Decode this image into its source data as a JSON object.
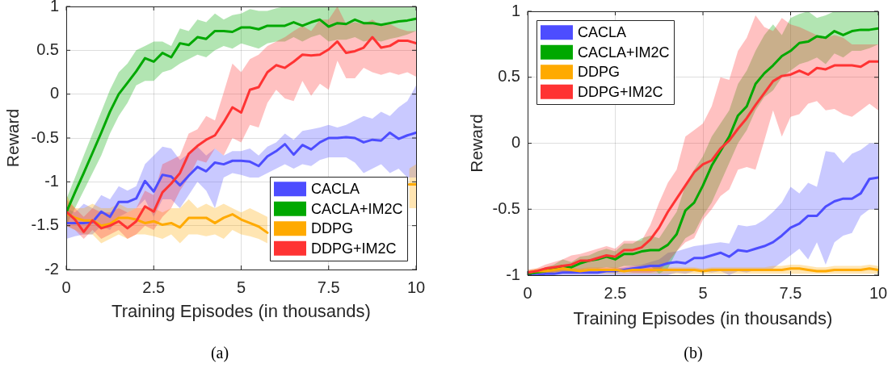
{
  "chart_data": [
    {
      "type": "line",
      "xlabel": "Training Episodes (in thousands)",
      "ylabel": "Reward",
      "annotations": [
        "(a)"
      ],
      "grid": true,
      "legend": "bottom right",
      "xlim": [
        0,
        10
      ],
      "ylim": [
        -2,
        1
      ],
      "xticks": [
        0,
        2.5,
        5,
        7.5,
        10
      ],
      "yticks": [
        -2,
        -1.5,
        -1,
        -0.5,
        0,
        0.5,
        1
      ],
      "x": [
        0,
        0.25,
        0.5,
        0.75,
        1,
        1.25,
        1.5,
        1.75,
        2,
        2.25,
        2.5,
        2.75,
        3,
        3.25,
        3.5,
        3.75,
        4,
        4.25,
        4.5,
        4.75,
        5,
        5.25,
        5.5,
        5.75,
        6,
        6.25,
        6.5,
        6.75,
        7,
        7.25,
        7.5,
        7.75,
        8,
        8.25,
        8.5,
        8.75,
        9,
        9.25,
        9.5,
        9.75,
        10
      ],
      "series": [
        {
          "name": "CACLA",
          "color": "#4d4dff",
          "values": [
            -1.47,
            -1.47,
            -1.47,
            -1.46,
            -1.34,
            -1.4,
            -1.23,
            -1.23,
            -1.19,
            -0.99,
            -1.11,
            -0.92,
            -0.94,
            -1.04,
            -0.93,
            -0.83,
            -0.88,
            -0.78,
            -0.8,
            -0.76,
            -0.76,
            -0.77,
            -0.82,
            -0.71,
            -0.65,
            -0.57,
            -0.69,
            -0.58,
            -0.63,
            -0.55,
            -0.5,
            -0.5,
            -0.49,
            -0.5,
            -0.55,
            -0.52,
            -0.53,
            -0.44,
            -0.51,
            -0.47,
            -0.44
          ],
          "upper": [
            -1.3,
            -1.35,
            -1.25,
            -1.3,
            -1.15,
            -1.2,
            -1.05,
            -1.1,
            -1.05,
            -0.8,
            -0.7,
            -0.6,
            -0.62,
            -0.75,
            -0.68,
            -0.6,
            -0.7,
            -0.62,
            -0.7,
            -0.65,
            -0.65,
            -0.62,
            -0.7,
            -0.6,
            -0.55,
            -0.45,
            -0.52,
            -0.42,
            -0.4,
            -0.38,
            -0.35,
            -0.38,
            -0.35,
            -0.3,
            -0.25,
            -0.28,
            -0.2,
            -0.25,
            -0.15,
            -0.08,
            0.1
          ],
          "lower": [
            -1.65,
            -1.62,
            -1.6,
            -1.6,
            -1.5,
            -1.55,
            -1.4,
            -1.35,
            -1.3,
            -1.2,
            -1.4,
            -1.2,
            -1.2,
            -1.3,
            -1.15,
            -1.0,
            -1.1,
            -1.3,
            -0.95,
            -0.9,
            -0.92,
            -0.95,
            -0.95,
            -0.9,
            -0.85,
            -0.8,
            -0.85,
            -0.8,
            -0.82,
            -0.75,
            -0.72,
            -0.72,
            -0.72,
            -0.78,
            -0.9,
            -0.85,
            -0.8,
            -0.9,
            -0.85,
            -0.95,
            -0.95
          ]
        },
        {
          "name": "CACLA+IM2C",
          "color": "#00a800",
          "values": [
            -1.35,
            -1.12,
            -0.9,
            -0.67,
            -0.44,
            -0.2,
            0.0,
            0.13,
            0.26,
            0.41,
            0.37,
            0.47,
            0.42,
            0.58,
            0.56,
            0.65,
            0.63,
            0.72,
            0.72,
            0.71,
            0.76,
            0.76,
            0.74,
            0.78,
            0.78,
            0.78,
            0.82,
            0.78,
            0.82,
            0.85,
            0.77,
            0.81,
            0.8,
            0.85,
            0.81,
            0.81,
            0.79,
            0.81,
            0.83,
            0.84,
            0.86
          ],
          "upper": [
            -1.2,
            -0.95,
            -0.7,
            -0.45,
            -0.2,
            0.05,
            0.25,
            0.35,
            0.5,
            0.55,
            0.6,
            0.6,
            0.55,
            0.75,
            0.72,
            0.85,
            0.82,
            0.92,
            0.85,
            0.9,
            0.92,
            0.97,
            0.95,
            0.95,
            0.98,
            1,
            1,
            1,
            1,
            1,
            1,
            1,
            1,
            1,
            1,
            1,
            1,
            1,
            1,
            1,
            1
          ],
          "lower": [
            -1.5,
            -1.3,
            -1.1,
            -0.9,
            -0.7,
            -0.45,
            -0.25,
            -0.1,
            0.1,
            0.15,
            0.15,
            0.25,
            0.28,
            0.35,
            0.4,
            0.45,
            0.42,
            0.5,
            0.55,
            0.52,
            0.58,
            0.55,
            0.52,
            0.58,
            0.6,
            0.6,
            0.65,
            0.6,
            0.65,
            0.68,
            0.6,
            0.62,
            0.62,
            0.65,
            0.6,
            0.62,
            0.6,
            0.63,
            0.65,
            0.68,
            0.72
          ]
        },
        {
          "name": "DDPG",
          "color": "#ffaa00",
          "x": [
            0,
            0.25,
            0.5,
            0.75,
            1,
            1.25,
            1.5,
            1.75,
            2,
            2.25,
            2.5,
            2.75,
            3,
            3.25,
            3.5,
            3.75,
            4,
            4.25,
            4.5,
            4.75,
            5,
            5.25,
            5.5,
            5.75,
            6,
            9.8,
            10
          ],
          "values": [
            -1.36,
            -1.41,
            -1.44,
            -1.44,
            -1.5,
            -1.48,
            -1.41,
            -1.41,
            -1.43,
            -1.47,
            -1.45,
            -1.49,
            -1.47,
            -1.52,
            -1.41,
            -1.41,
            -1.41,
            -1.47,
            -1.41,
            -1.37,
            -1.43,
            -1.47,
            -1.51,
            -1.58,
            null,
            -1.03,
            -1.03
          ],
          "upper": [
            -1.15,
            -1.3,
            -1.3,
            -1.25,
            -1.3,
            -1.3,
            -1.25,
            -1.3,
            -1.3,
            -1.3,
            -1.3,
            -1.35,
            -1.3,
            -1.3,
            -1.2,
            -1.3,
            -1.25,
            -1.3,
            -1.25,
            -1.3,
            -1.35,
            -1.3,
            -1.35,
            -1.4,
            null,
            -0.85,
            -0.8
          ],
          "lower": [
            -1.5,
            -1.55,
            -1.6,
            -1.6,
            -1.7,
            -1.65,
            -1.6,
            -1.65,
            -1.6,
            -1.6,
            -1.62,
            -1.65,
            -1.6,
            -1.7,
            -1.6,
            -1.6,
            -1.62,
            -1.6,
            -1.65,
            -1.55,
            -1.6,
            -1.62,
            -1.65,
            -1.7,
            null,
            -1.3,
            -1.3
          ]
        },
        {
          "name": "DDPG+IM2C",
          "color": "#ff3333",
          "values": [
            -1.34,
            -1.43,
            -1.57,
            -1.44,
            -1.53,
            -1.5,
            -1.45,
            -1.53,
            -1.45,
            -1.28,
            -1.34,
            -1.12,
            -1.02,
            -0.9,
            -0.68,
            -0.59,
            -0.52,
            -0.47,
            -0.32,
            -0.15,
            -0.21,
            0.05,
            0.08,
            0.25,
            0.33,
            0.3,
            0.37,
            0.45,
            0.44,
            0.45,
            0.51,
            0.6,
            0.47,
            0.49,
            0.53,
            0.65,
            0.53,
            0.55,
            0.61,
            0.61,
            0.58
          ],
          "upper": [
            -1.2,
            -1.3,
            -1.4,
            -1.3,
            -1.35,
            -1.35,
            -1.3,
            -1.35,
            -1.3,
            -1.1,
            -1.15,
            -0.8,
            -0.75,
            -0.7,
            -0.45,
            -0.4,
            -0.25,
            -0.3,
            0.02,
            0.35,
            0.25,
            0.4,
            0.45,
            0.55,
            0.6,
            0.65,
            0.72,
            0.78,
            0.72,
            0.85,
            0.85,
            1.0,
            0.8,
            0.82,
            0.8,
            0.85,
            0.78,
            0.8,
            0.75,
            0.72,
            0.72
          ],
          "lower": [
            -1.5,
            -1.55,
            -1.65,
            -1.55,
            -1.65,
            -1.6,
            -1.55,
            -1.65,
            -1.6,
            -1.5,
            -1.55,
            -1.4,
            -1.3,
            -1.1,
            -0.95,
            -0.75,
            -0.78,
            -0.62,
            -0.7,
            -0.5,
            -0.55,
            -0.35,
            -0.38,
            -0.1,
            0.05,
            -0.05,
            -0.08,
            0.15,
            -0.02,
            0.12,
            0.05,
            0.38,
            0.18,
            0.18,
            0.3,
            0.25,
            0.22,
            0.25,
            0.22,
            0.25,
            0.2
          ]
        }
      ]
    },
    {
      "type": "line",
      "xlabel": "Training Episodes (in thousands)",
      "ylabel": "Reward",
      "annotations": [
        "(b)"
      ],
      "grid": true,
      "legend": "top left",
      "xlim": [
        0,
        10
      ],
      "ylim": [
        -1,
        1
      ],
      "xticks": [
        0,
        2.5,
        5,
        7.5,
        10
      ],
      "yticks": [
        -1,
        -0.5,
        0,
        0.5,
        1
      ],
      "x": [
        0,
        0.25,
        0.5,
        0.75,
        1,
        1.25,
        1.5,
        1.75,
        2,
        2.25,
        2.5,
        2.75,
        3,
        3.25,
        3.5,
        3.75,
        4,
        4.25,
        4.5,
        4.75,
        5,
        5.25,
        5.5,
        5.75,
        6,
        6.25,
        6.5,
        6.75,
        7,
        7.25,
        7.5,
        7.75,
        8,
        8.25,
        8.5,
        8.75,
        9,
        9.25,
        9.5,
        9.75,
        10
      ],
      "series": [
        {
          "name": "CACLA",
          "color": "#4d4dff",
          "values": [
            -1.0,
            -1.0,
            -0.99,
            -0.99,
            -0.98,
            -0.98,
            -0.98,
            -0.98,
            -0.98,
            -0.97,
            -0.97,
            -0.96,
            -0.95,
            -0.94,
            -0.93,
            -0.93,
            -0.91,
            -0.9,
            -0.91,
            -0.87,
            -0.87,
            -0.85,
            -0.83,
            -0.86,
            -0.81,
            -0.82,
            -0.8,
            -0.78,
            -0.75,
            -0.7,
            -0.64,
            -0.61,
            -0.55,
            -0.55,
            -0.48,
            -0.44,
            -0.42,
            -0.42,
            -0.38,
            -0.27,
            -0.26
          ],
          "upper": [
            -0.98,
            -0.97,
            -0.97,
            -0.96,
            -0.96,
            -0.96,
            -0.96,
            -0.96,
            -0.95,
            -0.95,
            -0.95,
            -0.94,
            -0.93,
            -0.92,
            -0.9,
            -0.88,
            -0.83,
            -0.82,
            -0.8,
            -0.78,
            -0.77,
            -0.76,
            -0.75,
            -0.76,
            -0.62,
            -0.63,
            -0.62,
            -0.58,
            -0.52,
            -0.45,
            -0.33,
            -0.38,
            -0.3,
            -0.33,
            -0.06,
            -0.07,
            -0.15,
            -0.08,
            -0.05,
            0.0,
            0.0
          ],
          "lower": [
            -1,
            -1,
            -1,
            -1,
            -1,
            -1,
            -1,
            -1,
            -1,
            -1,
            -1,
            -1,
            -1,
            -1,
            -1,
            -1,
            -1,
            -0.98,
            -0.99,
            -0.97,
            -0.97,
            -0.98,
            -0.97,
            -1,
            -0.97,
            -0.98,
            -0.96,
            -0.97,
            -0.95,
            -0.9,
            -0.85,
            -0.8,
            -0.88,
            -0.75,
            -0.92,
            -0.75,
            -0.7,
            -0.68,
            -0.55,
            -0.5,
            -0.5
          ]
        },
        {
          "name": "CACLA+IM2C",
          "color": "#00a800",
          "values": [
            -0.99,
            -0.98,
            -0.97,
            -0.95,
            -0.93,
            -0.94,
            -0.91,
            -0.89,
            -0.88,
            -0.86,
            -0.88,
            -0.84,
            -0.84,
            -0.82,
            -0.81,
            -0.81,
            -0.77,
            -0.69,
            -0.51,
            -0.45,
            -0.32,
            -0.17,
            -0.06,
            0.05,
            0.21,
            0.28,
            0.45,
            0.53,
            0.59,
            0.66,
            0.7,
            0.76,
            0.77,
            0.81,
            0.8,
            0.85,
            0.82,
            0.85,
            0.86,
            0.86,
            0.87
          ],
          "upper": [
            -0.97,
            -0.96,
            -0.94,
            -0.92,
            -0.88,
            -0.9,
            -0.86,
            -0.85,
            -0.82,
            -0.8,
            -0.82,
            -0.76,
            -0.76,
            -0.72,
            -0.7,
            -0.72,
            -0.62,
            -0.52,
            -0.32,
            -0.2,
            -0.1,
            0.05,
            0.15,
            0.25,
            0.45,
            0.55,
            0.7,
            0.82,
            0.9,
            0.82,
            0.95,
            0.98,
            1,
            0.95,
            0.97,
            1,
            1,
            1,
            1,
            1,
            1
          ],
          "lower": [
            -1.0,
            -0.99,
            -0.99,
            -0.98,
            -0.97,
            -0.98,
            -0.96,
            -0.95,
            -0.95,
            -0.94,
            -0.95,
            -0.93,
            -0.93,
            -0.93,
            -0.93,
            -0.99,
            -0.95,
            -0.82,
            -0.72,
            -0.68,
            -0.55,
            -0.45,
            -0.3,
            -0.15,
            0.0,
            0.1,
            0.25,
            0.35,
            0.4,
            0.5,
            0.55,
            0.6,
            0.62,
            0.65,
            0.6,
            0.68,
            0.65,
            0.7,
            0.7,
            0.72,
            0.75
          ]
        },
        {
          "name": "DDPG",
          "color": "#ffaa00",
          "values": [
            -0.98,
            -0.97,
            -0.97,
            -0.96,
            -0.95,
            -0.96,
            -0.97,
            -0.96,
            -0.96,
            -0.96,
            -0.96,
            -0.97,
            -0.96,
            -0.96,
            -0.96,
            -0.96,
            -0.96,
            -0.96,
            -0.96,
            -0.96,
            -0.97,
            -0.96,
            -0.96,
            -0.96,
            -0.96,
            -0.96,
            -0.96,
            -0.96,
            -0.96,
            -0.96,
            -0.95,
            -0.95,
            -0.96,
            -0.97,
            -0.97,
            -0.96,
            -0.96,
            -0.96,
            -0.96,
            -0.95,
            -0.96
          ],
          "upper": [
            -0.96,
            -0.95,
            -0.95,
            -0.94,
            -0.93,
            -0.94,
            -0.95,
            -0.94,
            -0.94,
            -0.94,
            -0.94,
            -0.95,
            -0.94,
            -0.94,
            -0.94,
            -0.94,
            -0.94,
            -0.94,
            -0.94,
            -0.94,
            -0.95,
            -0.94,
            -0.94,
            -0.94,
            -0.94,
            -0.94,
            -0.94,
            -0.94,
            -0.93,
            -0.93,
            -0.92,
            -0.92,
            -0.93,
            -0.94,
            -0.94,
            -0.93,
            -0.93,
            -0.93,
            -0.93,
            -0.92,
            -0.93
          ],
          "lower": [
            -0.99,
            -0.99,
            -0.99,
            -0.99,
            -0.99,
            -0.99,
            -0.99,
            -0.99,
            -0.99,
            -0.99,
            -0.99,
            -0.99,
            -0.99,
            -0.99,
            -0.99,
            -0.99,
            -0.99,
            -0.99,
            -0.99,
            -0.99,
            -0.99,
            -0.99,
            -0.99,
            -0.99,
            -0.99,
            -0.99,
            -0.99,
            -0.99,
            -0.99,
            -0.99,
            -0.99,
            -0.99,
            -0.99,
            -0.99,
            -0.99,
            -0.99,
            -0.99,
            -0.99,
            -0.99,
            -0.99,
            -0.99
          ]
        },
        {
          "name": "DDPG+IM2C",
          "color": "#ff3333",
          "values": [
            -0.98,
            -0.97,
            -0.95,
            -0.94,
            -0.93,
            -0.92,
            -0.89,
            -0.89,
            -0.87,
            -0.85,
            -0.86,
            -0.81,
            -0.81,
            -0.79,
            -0.73,
            -0.64,
            -0.52,
            -0.42,
            -0.32,
            -0.22,
            -0.16,
            -0.13,
            -0.04,
            0.02,
            0.11,
            0.19,
            0.29,
            0.38,
            0.47,
            0.51,
            0.52,
            0.55,
            0.52,
            0.57,
            0.56,
            0.59,
            0.59,
            0.59,
            0.58,
            0.62,
            0.62
          ],
          "upper": [
            -0.96,
            -0.95,
            -0.92,
            -0.9,
            -0.88,
            -0.85,
            -0.84,
            -0.82,
            -0.8,
            -0.78,
            -0.8,
            -0.74,
            -0.74,
            -0.74,
            -0.62,
            -0.45,
            -0.3,
            -0.2,
            0.05,
            0.1,
            0.15,
            0.28,
            0.5,
            0.48,
            0.7,
            0.8,
            0.97,
            0.88,
            0.85,
            0.95,
            0.9,
            0.88,
            0.85,
            0.82,
            0.8,
            0.82,
            0.8,
            0.75,
            0.75,
            0.75,
            0.75
          ],
          "lower": [
            -1.0,
            -1.0,
            -0.99,
            -0.98,
            -0.98,
            -0.98,
            -0.97,
            -0.97,
            -0.96,
            -0.96,
            -0.97,
            -0.97,
            -0.98,
            -0.98,
            -0.98,
            -0.97,
            -0.9,
            -0.82,
            -0.75,
            -0.72,
            -0.58,
            -0.5,
            -0.4,
            -0.35,
            -0.2,
            -0.18,
            -0.2,
            0.02,
            0.25,
            0.05,
            0.2,
            0.22,
            0.3,
            0.32,
            0.25,
            0.26,
            0.22,
            0.2,
            0.25,
            0.3,
            0.25
          ]
        }
      ]
    }
  ]
}
